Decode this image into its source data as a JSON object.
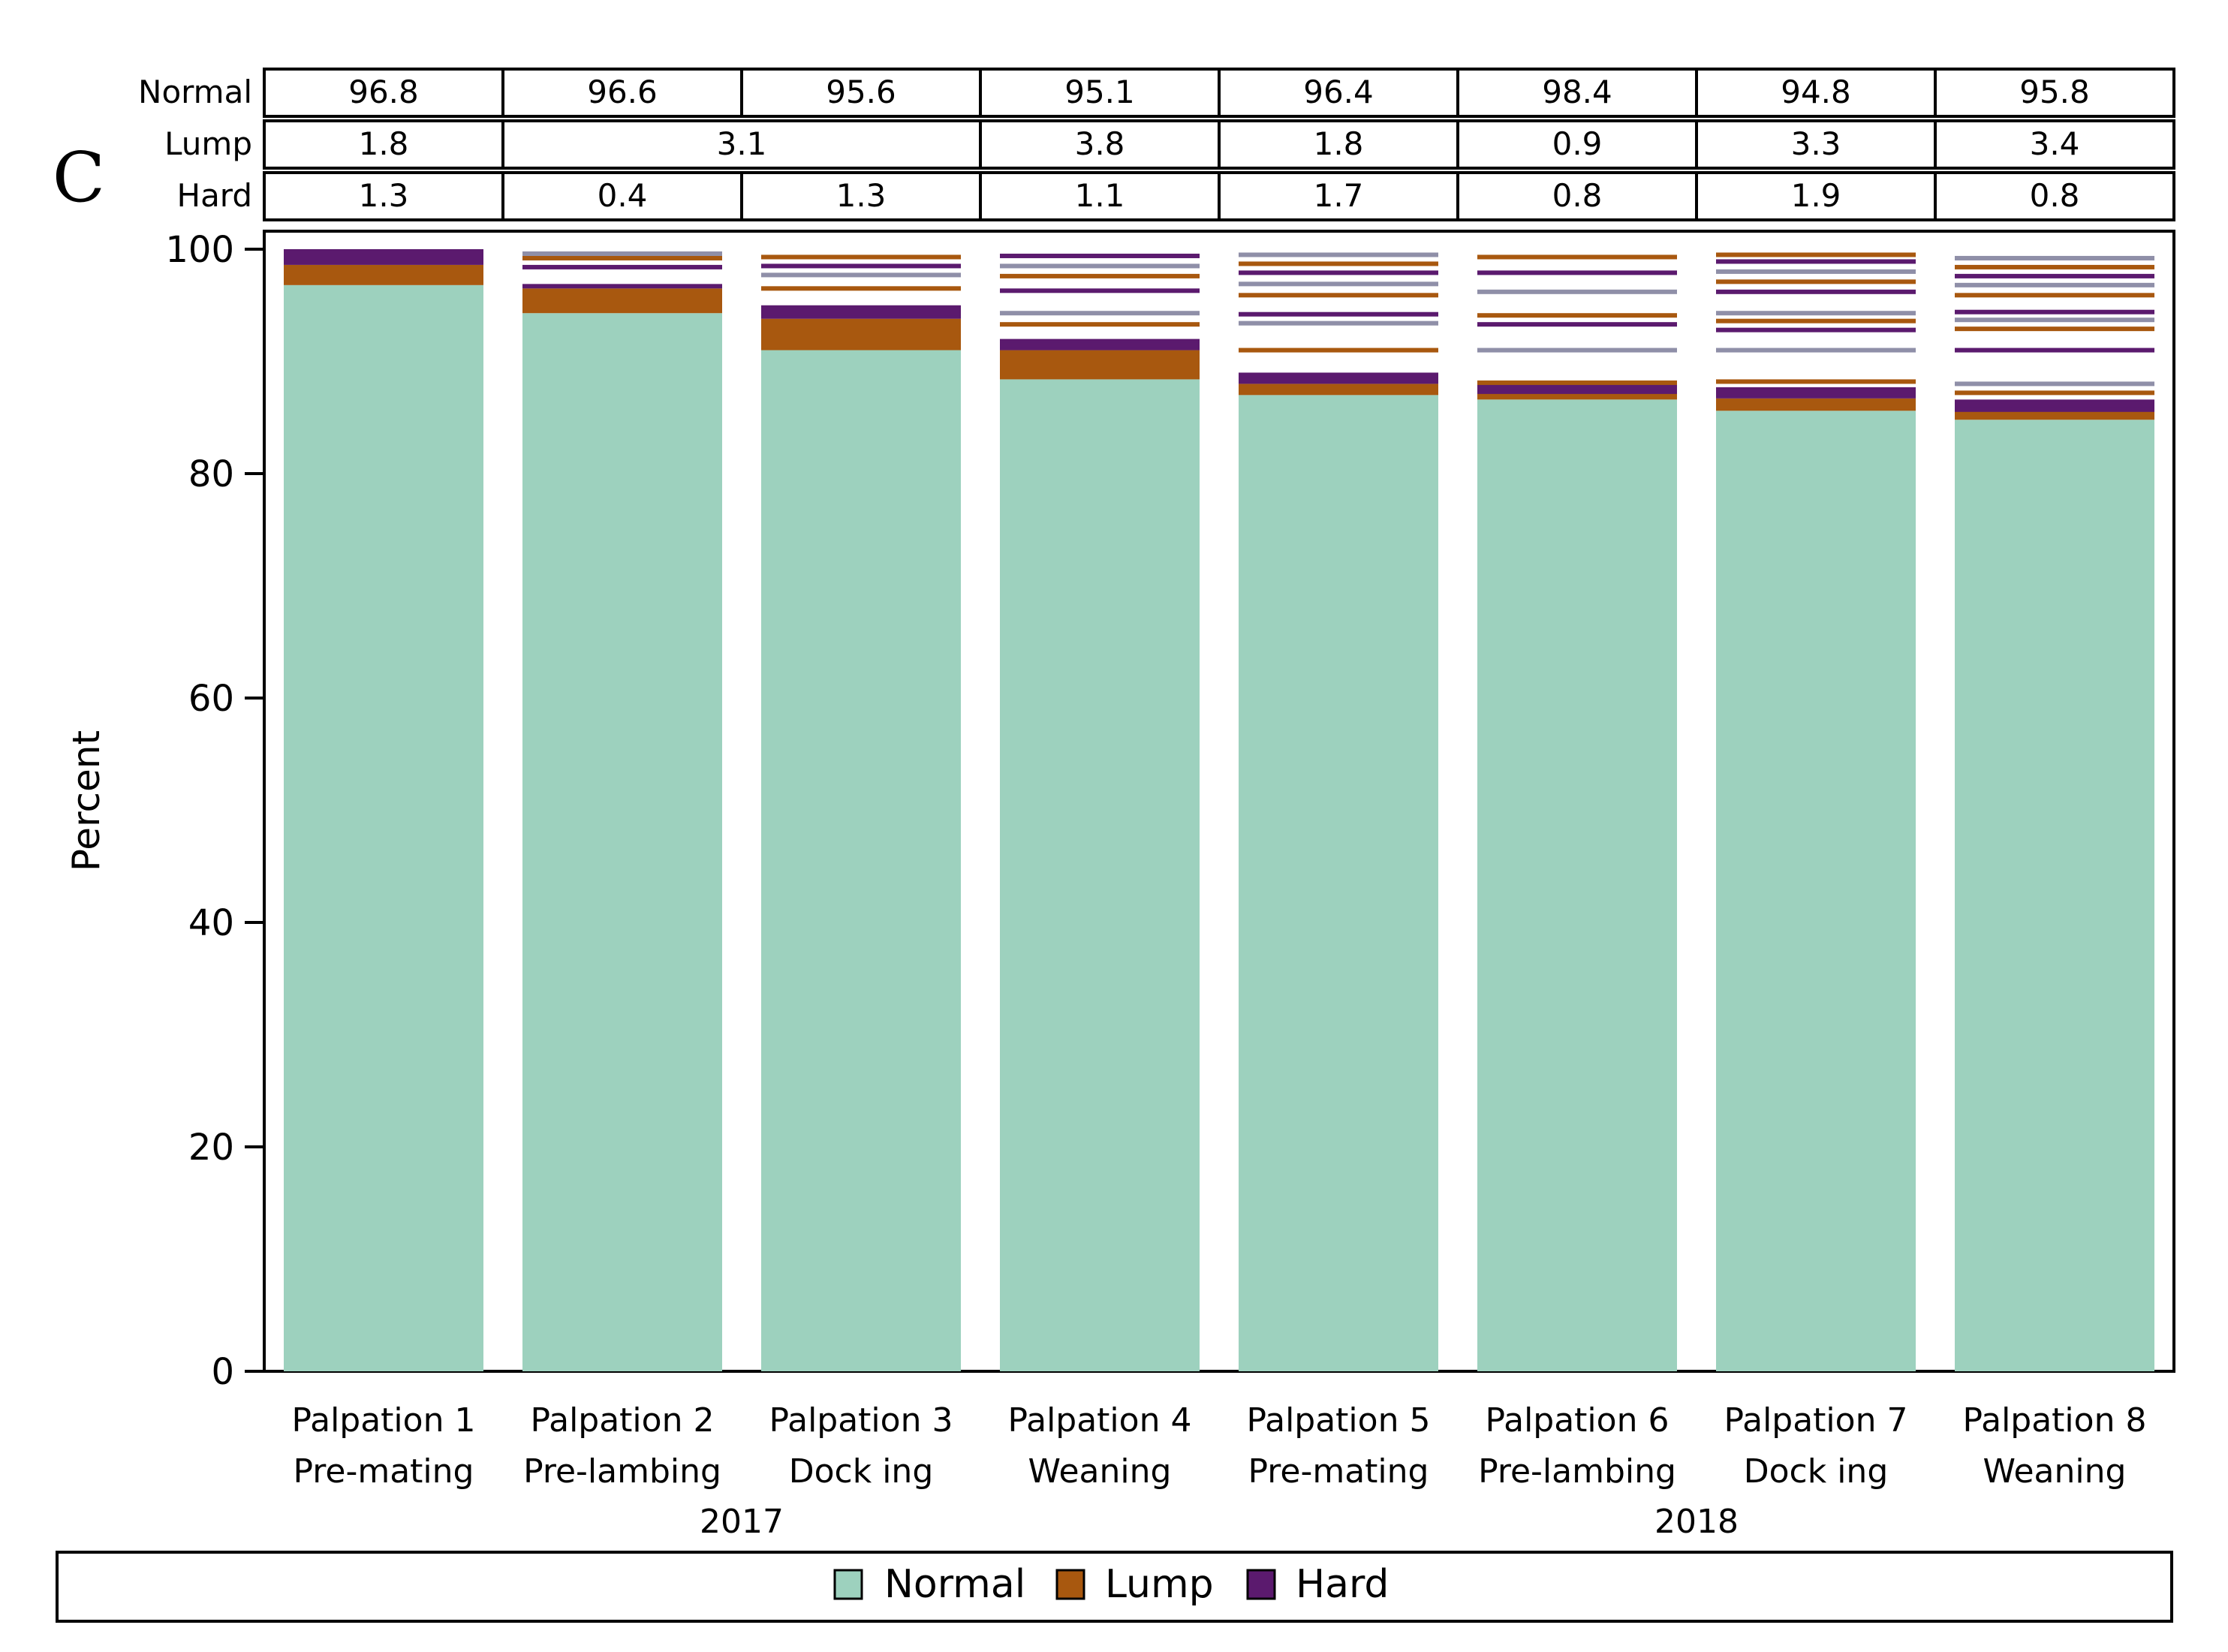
{
  "panel_label": "C",
  "colors": {
    "normal": "#9DD1BE",
    "lump": "#A8580F",
    "hard": "#5B1A6E",
    "grid": "#000000",
    "stripe_mix": "#8F8FA8"
  },
  "chart_data": {
    "type": "bar",
    "stacked": true,
    "ylabel": "Percent",
    "xlabel": "",
    "ylim": [
      0,
      100
    ],
    "yticks": [
      0,
      20,
      40,
      60,
      80,
      100
    ],
    "categories": [
      {
        "line1": "Palpation 1",
        "line2": "Pre-mating"
      },
      {
        "line1": "Palpation 2",
        "line2": "Pre-lambing"
      },
      {
        "line1": "Palpation 3",
        "line2": "Dock ing"
      },
      {
        "line1": "Palpation 4",
        "line2": "Weaning"
      },
      {
        "line1": "Palpation 5",
        "line2": "Pre-mating"
      },
      {
        "line1": "Palpation 6",
        "line2": "Pre-lambing"
      },
      {
        "line1": "Palpation 7",
        "line2": "Dock ing"
      },
      {
        "line1": "Palpation 8",
        "line2": "Weaning"
      }
    ],
    "years": [
      {
        "label": "2017",
        "from": 0,
        "to": 3
      },
      {
        "label": "2018",
        "from": 4,
        "to": 7
      }
    ],
    "series": [
      {
        "name": "Normal",
        "values": [
          96.8,
          94.3,
          91.0,
          88.4,
          87.0,
          86.6,
          85.6,
          84.8
        ]
      },
      {
        "name": "Lump",
        "values": [
          1.8,
          2.2,
          2.8,
          2.6,
          1.0,
          0.6,
          1.1,
          0.8
        ]
      },
      {
        "name": "Hard",
        "values": [
          1.4,
          0.4,
          1.2,
          1.0,
          1.0,
          0.9,
          1.0,
          1.0
        ]
      }
    ],
    "stripes": [
      [],
      [
        98.4,
        99.2,
        99.6
      ],
      [
        94.3,
        96.5,
        97.7,
        98.5,
        99.3
      ],
      [
        91.5,
        93.3,
        94.3,
        96.3,
        97.6,
        98.5,
        99.4
      ],
      [
        88.4,
        91.0,
        93.4,
        94.2,
        95.9,
        96.9,
        97.9,
        98.7,
        99.5
      ],
      [
        87.3,
        88.1,
        91.0,
        93.3,
        94.1,
        96.2,
        97.9,
        99.3
      ],
      [
        87.4,
        88.2,
        91.0,
        92.8,
        93.6,
        94.3,
        96.2,
        97.1,
        98.0,
        98.9,
        99.5
      ],
      [
        85.7,
        87.2,
        88.0,
        91.0,
        92.9,
        93.7,
        94.4,
        95.9,
        96.8,
        97.6,
        98.4,
        99.2
      ]
    ],
    "table": {
      "row_labels": [
        "Normal",
        "Lump",
        "Hard"
      ],
      "rows": [
        [
          {
            "text": "96.8",
            "span": 1
          },
          {
            "text": "96.6",
            "span": 1
          },
          {
            "text": "95.6",
            "span": 1
          },
          {
            "text": "95.1",
            "span": 1
          },
          {
            "text": "96.4",
            "span": 1
          },
          {
            "text": "98.4",
            "span": 1
          },
          {
            "text": "94.8",
            "span": 1
          },
          {
            "text": "95.8",
            "span": 1
          }
        ],
        [
          {
            "text": "1.8",
            "span": 1
          },
          {
            "text": "3.1",
            "span": 2
          },
          {
            "text": "3.8",
            "span": 1
          },
          {
            "text": "1.8",
            "span": 1
          },
          {
            "text": "0.9",
            "span": 1
          },
          {
            "text": "3.3",
            "span": 1
          },
          {
            "text": "3.4",
            "span": 1
          }
        ],
        [
          {
            "text": "1.3",
            "span": 1
          },
          {
            "text": "0.4",
            "span": 1
          },
          {
            "text": "1.3",
            "span": 1
          },
          {
            "text": "1.1",
            "span": 1
          },
          {
            "text": "1.7",
            "span": 1
          },
          {
            "text": "0.8",
            "span": 1
          },
          {
            "text": "1.9",
            "span": 1
          },
          {
            "text": "0.8",
            "span": 1
          }
        ]
      ]
    },
    "legend": [
      "Normal",
      "Lump",
      "Hard"
    ],
    "legend_position": "bottom"
  }
}
